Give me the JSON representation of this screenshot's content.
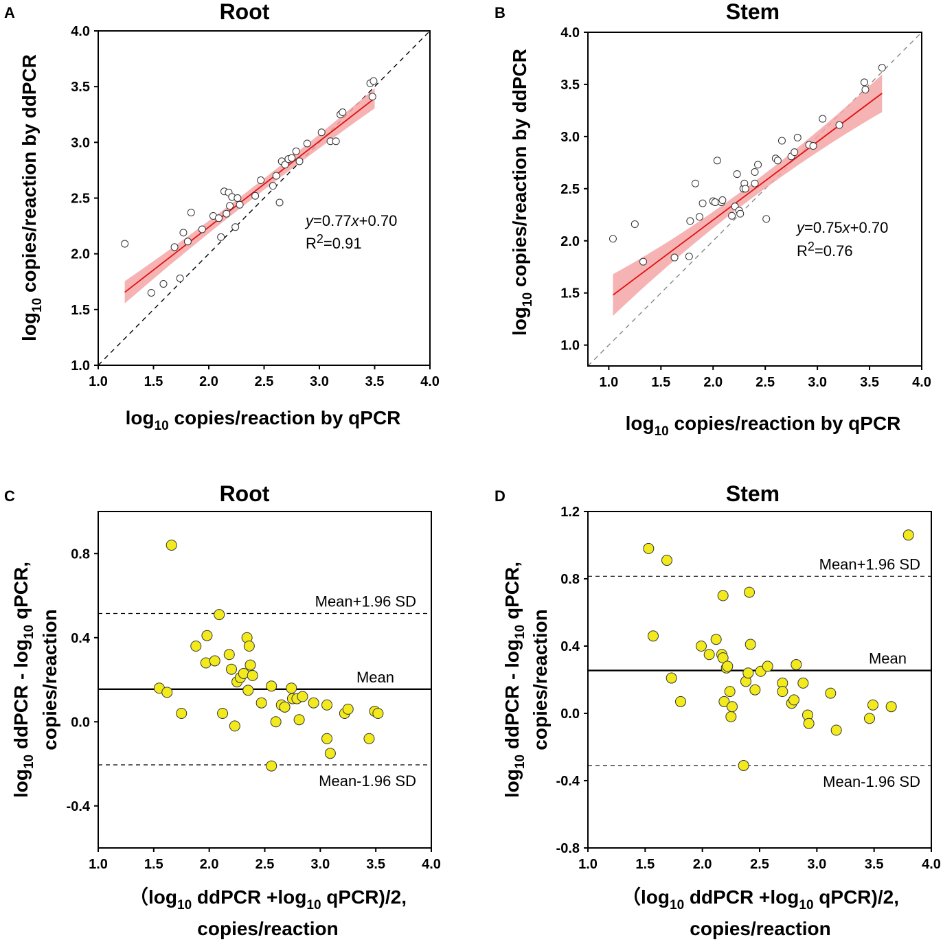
{
  "chart_data": [
    {
      "panel": "A",
      "type": "scatter",
      "title": "Root",
      "xlim": [
        1.0,
        4.0
      ],
      "ylim": [
        1.0,
        4.0
      ],
      "xticks": [
        "1.0",
        "1.5",
        "2.0",
        "2.5",
        "3.0",
        "3.5",
        "4.0"
      ],
      "yticks": [
        "1.0",
        "1.5",
        "2.0",
        "2.5",
        "3.0",
        "3.5",
        "4.0"
      ],
      "xlabel": {
        "pre": "log",
        "sub": "10",
        "post": " copies/reaction by qPCR"
      },
      "ylabel": {
        "pre": "log",
        "sub": "10",
        "post": " copies/reaction by ddPCR"
      },
      "annotation": {
        "equation_y": "y",
        "equation_mid": "=0.77",
        "equation_x": "x",
        "equation_end": "+0.70",
        "r2_pre": "R",
        "r2_sup": "2",
        "r2_post": "=0.91"
      },
      "regression": {
        "slope": 0.77,
        "intercept": 0.7,
        "x_range": [
          1.24,
          3.5
        ],
        "band_half_width": [
          0.1,
          0.05,
          0.09
        ]
      },
      "identity_line": true,
      "points": [
        [
          1.24,
          2.09
        ],
        [
          1.48,
          1.65
        ],
        [
          1.59,
          1.73
        ],
        [
          1.69,
          2.06
        ],
        [
          1.74,
          1.78
        ],
        [
          1.77,
          2.19
        ],
        [
          1.81,
          2.11
        ],
        [
          1.84,
          2.37
        ],
        [
          1.94,
          2.22
        ],
        [
          2.04,
          2.34
        ],
        [
          2.09,
          2.32
        ],
        [
          2.11,
          2.15
        ],
        [
          2.14,
          2.56
        ],
        [
          2.16,
          2.36
        ],
        [
          2.18,
          2.55
        ],
        [
          2.19,
          2.43
        ],
        [
          2.21,
          2.51
        ],
        [
          2.24,
          2.24
        ],
        [
          2.26,
          2.5
        ],
        [
          2.28,
          2.44
        ],
        [
          2.42,
          2.52
        ],
        [
          2.47,
          2.66
        ],
        [
          2.58,
          2.61
        ],
        [
          2.61,
          2.7
        ],
        [
          2.64,
          2.46
        ],
        [
          2.66,
          2.83
        ],
        [
          2.69,
          2.8
        ],
        [
          2.72,
          2.85
        ],
        [
          2.75,
          2.86
        ],
        [
          2.79,
          2.92
        ],
        [
          2.82,
          2.83
        ],
        [
          2.89,
          2.99
        ],
        [
          3.02,
          3.09
        ],
        [
          3.1,
          3.01
        ],
        [
          3.15,
          3.01
        ],
        [
          3.19,
          3.25
        ],
        [
          3.21,
          3.27
        ],
        [
          3.46,
          3.53
        ],
        [
          3.48,
          3.41
        ],
        [
          3.49,
          3.55
        ]
      ]
    },
    {
      "panel": "B",
      "type": "scatter",
      "title": "Stem",
      "xlim": [
        0.8,
        4.0
      ],
      "ylim": [
        0.8,
        4.0
      ],
      "xticks": [
        "1.0",
        "1.5",
        "2.0",
        "2.5",
        "3.0",
        "3.5",
        "4.0"
      ],
      "yticks": [
        "1.0",
        "1.5",
        "2.0",
        "2.5",
        "3.0",
        "3.5",
        "4.0"
      ],
      "xlabel": {
        "pre": "log",
        "sub": "10",
        "post": " copies/reaction by qPCR"
      },
      "ylabel": {
        "pre": "log",
        "sub": "10",
        "post": " copies/reaction by ddPCR"
      },
      "annotation": {
        "equation_y": "y",
        "equation_mid": "=0.75",
        "equation_x": "x",
        "equation_end": "+0.70",
        "r2_pre": "R",
        "r2_sup": "2",
        "r2_post": "=0.76"
      },
      "regression": {
        "slope": 0.75,
        "intercept": 0.7,
        "x_range": [
          1.04,
          3.62
        ],
        "band_half_width": [
          0.2,
          0.07,
          0.18
        ]
      },
      "identity_line": true,
      "points": [
        [
          1.04,
          2.02
        ],
        [
          1.25,
          2.16
        ],
        [
          1.33,
          1.8
        ],
        [
          1.63,
          1.84
        ],
        [
          1.77,
          1.85
        ],
        [
          1.78,
          2.19
        ],
        [
          1.83,
          2.55
        ],
        [
          1.87,
          2.23
        ],
        [
          1.9,
          2.36
        ],
        [
          2.0,
          2.38
        ],
        [
          2.02,
          2.37
        ],
        [
          2.04,
          2.77
        ],
        [
          2.08,
          2.37
        ],
        [
          2.09,
          2.39
        ],
        [
          2.18,
          2.24
        ],
        [
          2.21,
          2.33
        ],
        [
          2.23,
          2.64
        ],
        [
          2.25,
          2.29
        ],
        [
          2.26,
          2.26
        ],
        [
          2.29,
          2.5
        ],
        [
          2.3,
          2.55
        ],
        [
          2.31,
          2.5
        ],
        [
          2.4,
          2.55
        ],
        [
          2.4,
          2.66
        ],
        [
          2.43,
          2.73
        ],
        [
          2.51,
          2.21
        ],
        [
          2.6,
          2.79
        ],
        [
          2.62,
          2.77
        ],
        [
          2.66,
          2.96
        ],
        [
          2.75,
          2.81
        ],
        [
          2.78,
          2.85
        ],
        [
          2.81,
          2.99
        ],
        [
          2.92,
          2.92
        ],
        [
          2.96,
          2.91
        ],
        [
          3.05,
          3.17
        ],
        [
          3.21,
          3.11
        ],
        [
          3.45,
          3.52
        ],
        [
          3.46,
          3.45
        ],
        [
          3.62,
          3.66
        ]
      ]
    },
    {
      "panel": "C",
      "type": "scatter",
      "title": "Root",
      "xlim": [
        1.0,
        4.0
      ],
      "ylim": [
        -0.6,
        1.0
      ],
      "xticks": [
        "1.0",
        "1.5",
        "2.0",
        "2.5",
        "3.0",
        "3.5",
        "4.0"
      ],
      "ytick_values": [
        -0.4,
        0.0,
        0.4,
        0.8
      ],
      "yticks": [
        "-0.4",
        "0.0",
        "0.4",
        "0.8"
      ],
      "xlabel_line1": {
        "pre": "（log",
        "sub1": "10",
        "mid": " ddPCR +log",
        "sub2": "10",
        "post": " qPCR)/2,"
      },
      "xlabel_line2": "copies/reaction",
      "ylabel_line1": {
        "pre": "log",
        "sub1": "10",
        "mid": " ddPCR - log",
        "sub2": "10",
        "post": " qPCR,"
      },
      "ylabel_line2": "copies/reaction",
      "reference_lines": [
        {
          "label": "Mean+1.96 SD",
          "y": 0.515,
          "style": "dashed"
        },
        {
          "label": "Mean",
          "y": 0.155,
          "style": "solid"
        },
        {
          "label": "Mean-1.96 SD",
          "y": -0.205,
          "style": "dashed"
        }
      ],
      "points": [
        [
          1.55,
          0.16
        ],
        [
          1.62,
          0.14
        ],
        [
          1.66,
          0.84
        ],
        [
          1.75,
          0.04
        ],
        [
          1.88,
          0.36
        ],
        [
          1.97,
          0.28
        ],
        [
          1.98,
          0.41
        ],
        [
          2.05,
          0.29
        ],
        [
          2.09,
          0.51
        ],
        [
          2.12,
          0.04
        ],
        [
          2.18,
          0.32
        ],
        [
          2.2,
          0.25
        ],
        [
          2.23,
          -0.02
        ],
        [
          2.25,
          0.19
        ],
        [
          2.28,
          0.21
        ],
        [
          2.31,
          0.23
        ],
        [
          2.34,
          0.4
        ],
        [
          2.35,
          0.15
        ],
        [
          2.36,
          0.36
        ],
        [
          2.37,
          0.27
        ],
        [
          2.39,
          0.22
        ],
        [
          2.47,
          0.09
        ],
        [
          2.56,
          0.17
        ],
        [
          2.56,
          -0.21
        ],
        [
          2.6,
          0.0
        ],
        [
          2.65,
          0.08
        ],
        [
          2.68,
          0.07
        ],
        [
          2.74,
          0.16
        ],
        [
          2.75,
          0.11
        ],
        [
          2.79,
          0.11
        ],
        [
          2.81,
          0.01
        ],
        [
          2.84,
          0.12
        ],
        [
          2.94,
          0.09
        ],
        [
          3.06,
          0.08
        ],
        [
          3.06,
          -0.08
        ],
        [
          3.09,
          -0.15
        ],
        [
          3.22,
          0.04
        ],
        [
          3.25,
          0.06
        ],
        [
          3.44,
          -0.08
        ],
        [
          3.49,
          0.05
        ],
        [
          3.52,
          0.04
        ]
      ]
    },
    {
      "panel": "D",
      "type": "scatter",
      "title": "Stem",
      "xlim": [
        1.0,
        4.0
      ],
      "ylim": [
        -0.8,
        1.2
      ],
      "xticks": [
        "1.0",
        "1.5",
        "2.0",
        "2.5",
        "3.0",
        "3.5",
        "4.0"
      ],
      "ytick_values": [
        -0.8,
        -0.4,
        0.0,
        0.4,
        0.8,
        1.2
      ],
      "yticks": [
        "-0.8",
        "-0.4",
        "0.0",
        "0.4",
        "0.8",
        "1.2"
      ],
      "xlabel_line1": {
        "pre": "（log",
        "sub1": "10",
        "mid": " ddPCR +log",
        "sub2": "10",
        "post": " qPCR)/2,"
      },
      "xlabel_line2": "copies/reaction",
      "ylabel_line1": {
        "pre": "log",
        "sub1": "10",
        "mid": " ddPCR - log",
        "sub2": "10",
        "post": " qPCR,"
      },
      "ylabel_line2": "copies/reaction",
      "reference_lines": [
        {
          "label": "Mean+1.96 SD",
          "y": 0.815,
          "style": "dashed"
        },
        {
          "label": "Mean",
          "y": 0.255,
          "style": "solid"
        },
        {
          "label": "Mean-1.96 SD",
          "y": -0.31,
          "style": "dashed"
        }
      ],
      "points": [
        [
          1.53,
          0.98
        ],
        [
          1.57,
          0.46
        ],
        [
          1.69,
          0.91
        ],
        [
          1.73,
          0.21
        ],
        [
          1.81,
          0.07
        ],
        [
          1.99,
          0.4
        ],
        [
          2.06,
          0.35
        ],
        [
          2.12,
          0.44
        ],
        [
          2.17,
          0.35
        ],
        [
          2.18,
          0.7
        ],
        [
          2.18,
          0.33
        ],
        [
          2.19,
          0.07
        ],
        [
          2.21,
          0.27
        ],
        [
          2.22,
          0.28
        ],
        [
          2.24,
          0.13
        ],
        [
          2.25,
          -0.02
        ],
        [
          2.26,
          0.04
        ],
        [
          2.36,
          -0.31
        ],
        [
          2.38,
          0.19
        ],
        [
          2.4,
          0.24
        ],
        [
          2.41,
          0.72
        ],
        [
          2.42,
          0.41
        ],
        [
          2.46,
          0.14
        ],
        [
          2.51,
          0.25
        ],
        [
          2.57,
          0.28
        ],
        [
          2.7,
          0.18
        ],
        [
          2.7,
          0.13
        ],
        [
          2.78,
          0.06
        ],
        [
          2.8,
          0.08
        ],
        [
          2.82,
          0.29
        ],
        [
          2.88,
          0.18
        ],
        [
          2.92,
          -0.01
        ],
        [
          2.93,
          -0.06
        ],
        [
          3.12,
          0.12
        ],
        [
          3.17,
          -0.1
        ],
        [
          3.46,
          -0.03
        ],
        [
          3.49,
          0.05
        ],
        [
          3.65,
          0.04
        ],
        [
          3.8,
          1.06
        ]
      ]
    }
  ]
}
